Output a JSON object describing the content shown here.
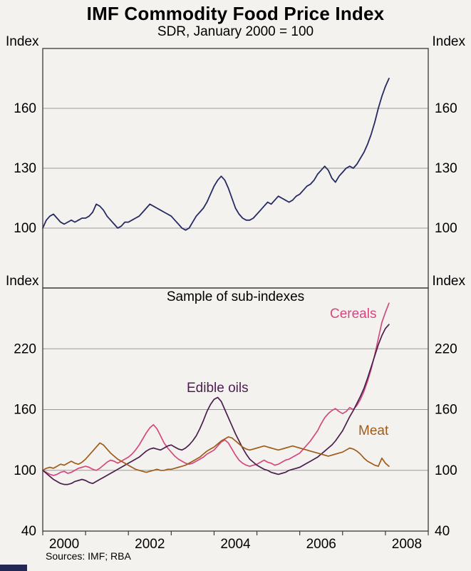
{
  "page": {
    "title": "IMF Commodity Food Price Index",
    "subtitle": "SDR, January 2000 = 100",
    "source": "Sources: IMF; RBA"
  },
  "colors": {
    "background": "#f4f2ee",
    "frame": "#3a3a3a",
    "grid": "#9a9a9a",
    "text": "#000000",
    "footer_bar": "#232753"
  },
  "chart_data": [
    {
      "type": "line",
      "panel": "top",
      "title": "",
      "xlabel": "",
      "ylabel": "Index",
      "ylim": [
        70,
        190
      ],
      "yticks": [
        100,
        130,
        160
      ],
      "xlim": [
        2000,
        2009
      ],
      "x_start": 2000.0,
      "x_interval": "monthly",
      "xticks": {
        "labels": [
          "2000",
          "2002",
          "2004",
          "2006",
          "2008"
        ],
        "positions": [
          2000.5,
          2002.5,
          2004.5,
          2006.5,
          2008.5
        ]
      },
      "grid": true,
      "legend_position": "none",
      "series": [
        {
          "name": "Food price index",
          "color": "#242a63",
          "width": 1.8,
          "values": [
            100,
            104,
            106,
            107,
            105,
            103,
            102,
            103,
            104,
            103,
            104,
            105,
            105,
            106,
            108,
            112,
            111,
            109,
            106,
            104,
            102,
            100,
            101,
            103,
            103,
            104,
            105,
            106,
            108,
            110,
            112,
            111,
            110,
            109,
            108,
            107,
            106,
            104,
            102,
            100,
            99,
            100,
            103,
            106,
            108,
            110,
            113,
            117,
            121,
            124,
            126,
            124,
            120,
            115,
            110,
            107,
            105,
            104,
            104,
            105,
            107,
            109,
            111,
            113,
            112,
            114,
            116,
            115,
            114,
            113,
            114,
            116,
            117,
            119,
            121,
            122,
            124,
            127,
            129,
            131,
            129,
            125,
            123,
            126,
            128,
            130,
            131,
            130,
            132,
            135,
            138,
            142,
            147,
            153,
            160,
            166,
            171,
            175
          ]
        }
      ]
    },
    {
      "type": "line",
      "panel": "bottom",
      "title": "Sample of sub-indexes",
      "xlabel": "",
      "ylabel": "Index",
      "ylim": [
        40,
        280
      ],
      "yticks": [
        40,
        100,
        160,
        220
      ],
      "xlim": [
        2000,
        2009
      ],
      "x_start": 2000.0,
      "x_interval": "monthly",
      "xticks": {
        "labels": [
          "2000",
          "2002",
          "2004",
          "2006",
          "2008"
        ],
        "positions": [
          2000.5,
          2002.5,
          2004.5,
          2006.5,
          2008.5
        ]
      },
      "grid": true,
      "legend_position": "inline-annotations",
      "series": [
        {
          "name": "Cereals",
          "color": "#d4487e",
          "width": 1.7,
          "values": [
            100,
            98,
            96,
            95,
            96,
            98,
            99,
            97,
            98,
            100,
            102,
            103,
            104,
            103,
            101,
            100,
            102,
            105,
            108,
            110,
            109,
            107,
            109,
            111,
            113,
            116,
            120,
            125,
            131,
            137,
            142,
            145,
            141,
            134,
            127,
            122,
            118,
            114,
            111,
            109,
            107,
            106,
            107,
            109,
            111,
            113,
            116,
            118,
            120,
            124,
            128,
            130,
            127,
            121,
            115,
            110,
            107,
            105,
            104,
            105,
            106,
            108,
            110,
            108,
            107,
            105,
            106,
            108,
            110,
            111,
            113,
            115,
            117,
            121,
            125,
            129,
            134,
            139,
            146,
            152,
            156,
            159,
            161,
            158,
            156,
            158,
            162,
            160,
            164,
            170,
            178,
            188,
            200,
            214,
            230,
            246,
            256,
            265
          ]
        },
        {
          "name": "Edible oils",
          "color": "#4b1e4f",
          "width": 1.7,
          "values": [
            100,
            97,
            94,
            91,
            89,
            87,
            86,
            86,
            87,
            89,
            90,
            91,
            90,
            88,
            87,
            89,
            91,
            93,
            95,
            97,
            99,
            101,
            103,
            105,
            107,
            109,
            111,
            113,
            116,
            119,
            121,
            122,
            121,
            120,
            122,
            124,
            125,
            123,
            121,
            120,
            122,
            125,
            129,
            134,
            141,
            149,
            158,
            165,
            170,
            172,
            168,
            160,
            152,
            144,
            136,
            129,
            122,
            116,
            111,
            108,
            105,
            103,
            101,
            100,
            98,
            97,
            96,
            97,
            98,
            100,
            101,
            102,
            103,
            105,
            107,
            109,
            111,
            113,
            116,
            119,
            122,
            125,
            129,
            134,
            139,
            146,
            153,
            159,
            166,
            173,
            181,
            191,
            202,
            213,
            224,
            233,
            240,
            244
          ]
        },
        {
          "name": "Meat",
          "color": "#9e5c1c",
          "width": 1.7,
          "values": [
            100,
            102,
            103,
            102,
            104,
            106,
            105,
            107,
            109,
            107,
            106,
            108,
            111,
            115,
            119,
            123,
            127,
            125,
            121,
            117,
            114,
            111,
            109,
            107,
            105,
            103,
            101,
            100,
            99,
            98,
            99,
            100,
            101,
            100,
            100,
            101,
            101,
            102,
            103,
            104,
            105,
            107,
            109,
            111,
            113,
            116,
            119,
            121,
            123,
            126,
            129,
            131,
            133,
            132,
            129,
            126,
            123,
            121,
            120,
            121,
            122,
            123,
            124,
            123,
            122,
            121,
            120,
            121,
            122,
            123,
            124,
            123,
            122,
            121,
            120,
            119,
            118,
            117,
            116,
            115,
            114,
            115,
            116,
            117,
            118,
            120,
            122,
            121,
            119,
            116,
            112,
            109,
            107,
            105,
            104,
            112,
            107,
            104
          ]
        }
      ]
    }
  ]
}
